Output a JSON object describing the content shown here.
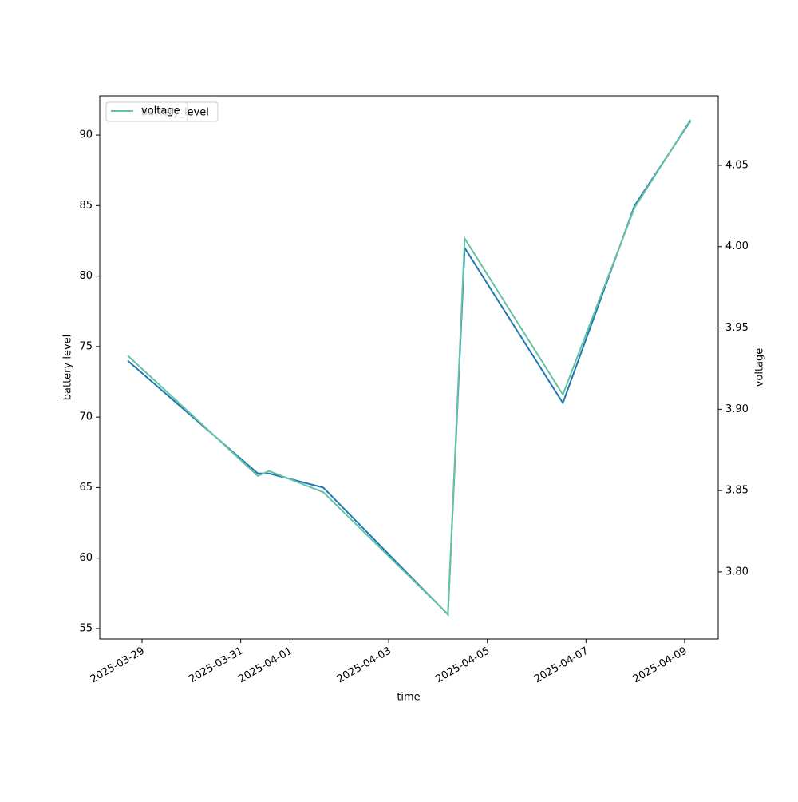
{
  "chart_data": {
    "type": "line",
    "xlabel": "time",
    "ylabel": "battery level",
    "y2label": "voltage",
    "x": [
      "2025-03-28T17:00",
      "2025-03-31T08:20",
      "2025-03-31T13:45",
      "2025-04-01T16:10",
      "2025-04-04T04:50",
      "2025-04-04T13:00",
      "2025-04-06T12:45",
      "2025-04-07T23:40",
      "2025-04-09T02:50"
    ],
    "xlim": [
      "2025-03-28T03:25",
      "2025-04-09T16:20"
    ],
    "xticks": [
      "2025-03-29",
      "2025-03-31",
      "2025-04-01",
      "2025-04-03",
      "2025-04-05",
      "2025-04-07",
      "2025-04-09"
    ],
    "ylim": [
      54.26,
      92.78
    ],
    "yticks": [
      55,
      60,
      65,
      70,
      75,
      80,
      85,
      90
    ],
    "y2lim": [
      3.7587,
      4.0927
    ],
    "y2ticks": [
      {
        "value": 3.8,
        "label": "3.80"
      },
      3.85,
      {
        "value": 3.9,
        "label": "3.90"
      },
      3.95,
      {
        "value": 4.0,
        "label": "4.00"
      },
      4.05
    ],
    "legend": "upper left",
    "series": [
      {
        "name": "battery_level",
        "color": "#1f77b4",
        "values": [
          74,
          66,
          66,
          65,
          56,
          82,
          71,
          85,
          91
        ]
      },
      {
        "name": "voltage",
        "color": "#66c2a5",
        "axis": "y2",
        "values": [
          3.933,
          3.859,
          3.862,
          3.849,
          3.774,
          4.005,
          3.909,
          4.024,
          4.078
        ]
      }
    ]
  }
}
